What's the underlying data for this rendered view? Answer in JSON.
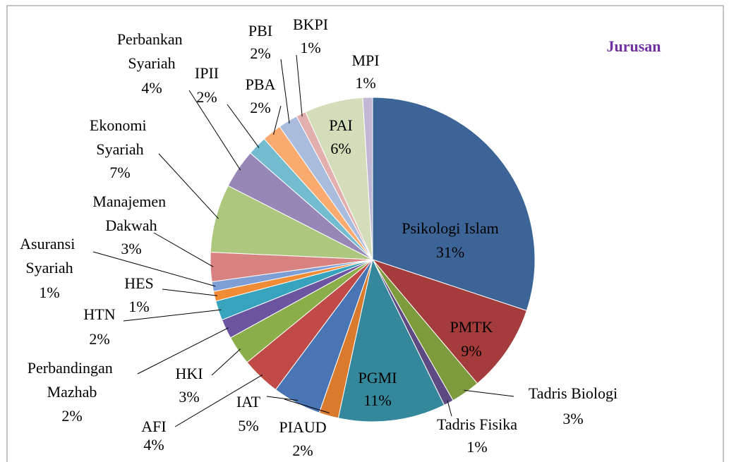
{
  "chart_data": {
    "type": "pie",
    "title": "Jurusan",
    "categories": [
      "Psikologi Islam",
      "PMTK",
      "Tadris Biologi",
      "Tadris Fisika",
      "PGMI",
      "PIAUD",
      "IAT",
      "AFI",
      "HKI",
      "Perbandingan Mazhab",
      "HTN",
      "HES",
      "Asuransi Syariah",
      "Manajemen Dakwah",
      "Ekonomi Syariah",
      "Perbankan Syariah",
      "IPII",
      "PBA",
      "PBI",
      "BKPI",
      "PAI",
      "MPI"
    ],
    "values": [
      31,
      9,
      3,
      1,
      11,
      2,
      5,
      4,
      3,
      2,
      2,
      1,
      1,
      3,
      7,
      4,
      2,
      2,
      2,
      1,
      6,
      1
    ],
    "value_labels": [
      "31%",
      "9%",
      "3%",
      "1%",
      "11%",
      "2%",
      "5%",
      "4%",
      "3%",
      "2%",
      "2%",
      "1%",
      "1%",
      "3%",
      "7%",
      "4%",
      "2%",
      "2%",
      "2%",
      "1%",
      "6%",
      "1%"
    ],
    "colors": [
      "#3d6496",
      "#a33c3a",
      "#7d9a3c",
      "#5e4a82",
      "#35879b",
      "#d97a2c",
      "#4a75b4",
      "#c04a47",
      "#8cae4a",
      "#6c55a0",
      "#38a3bd",
      "#f08c35",
      "#7d9fd6",
      "#d88382",
      "#adc77f",
      "#9787b7",
      "#73bccf",
      "#f9ab6f",
      "#aabcdd",
      "#e3aeae",
      "#d3ddb9",
      "#c2b8d5"
    ]
  }
}
